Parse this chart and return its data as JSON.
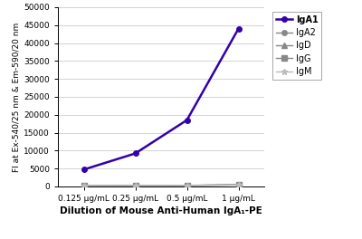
{
  "x_labels": [
    "0.125 μg/mL",
    "0.25 μg/mL",
    "0.5 μg/mL",
    "1 μg/mL"
  ],
  "x_values": [
    1,
    2,
    3,
    4
  ],
  "series": {
    "IgA1": {
      "values": [
        4700,
        9200,
        18500,
        44000
      ],
      "color": "#3300aa",
      "marker": "o",
      "linestyle": "-",
      "linewidth": 1.8,
      "markersize": 4,
      "zorder": 5
    },
    "IgA2": {
      "values": [
        200,
        250,
        300,
        500
      ],
      "color": "#888888",
      "marker": "o",
      "linestyle": "-",
      "linewidth": 1.0,
      "markersize": 4,
      "zorder": 3
    },
    "IgD": {
      "values": [
        150,
        200,
        280,
        400
      ],
      "color": "#888888",
      "marker": "^",
      "linestyle": "-",
      "linewidth": 1.0,
      "markersize": 4,
      "zorder": 3
    },
    "IgG": {
      "values": [
        200,
        230,
        260,
        450
      ],
      "color": "#888888",
      "marker": "s",
      "linestyle": "-",
      "linewidth": 1.0,
      "markersize": 4,
      "zorder": 3
    },
    "IgM": {
      "values": [
        180,
        210,
        270,
        420
      ],
      "color": "#bbbbbb",
      "marker": "*",
      "linestyle": "-",
      "linewidth": 1.0,
      "markersize": 5,
      "zorder": 3
    }
  },
  "ylabel": "FI at Ex-540/25 nm & Em-590/20 nm",
  "xlabel": "Dilution of Mouse Anti-Human IgA₁-PE",
  "ylim": [
    0,
    50000
  ],
  "yticks": [
    0,
    5000,
    10000,
    15000,
    20000,
    25000,
    30000,
    35000,
    40000,
    45000,
    50000
  ],
  "legend_order": [
    "IgA1",
    "IgA2",
    "IgD",
    "IgG",
    "IgM"
  ],
  "legend_labels": [
    "IgA1",
    "IgA2",
    "IgD",
    "IgG",
    "IgM"
  ],
  "background_color": "#ffffff",
  "grid_color": "#cccccc"
}
